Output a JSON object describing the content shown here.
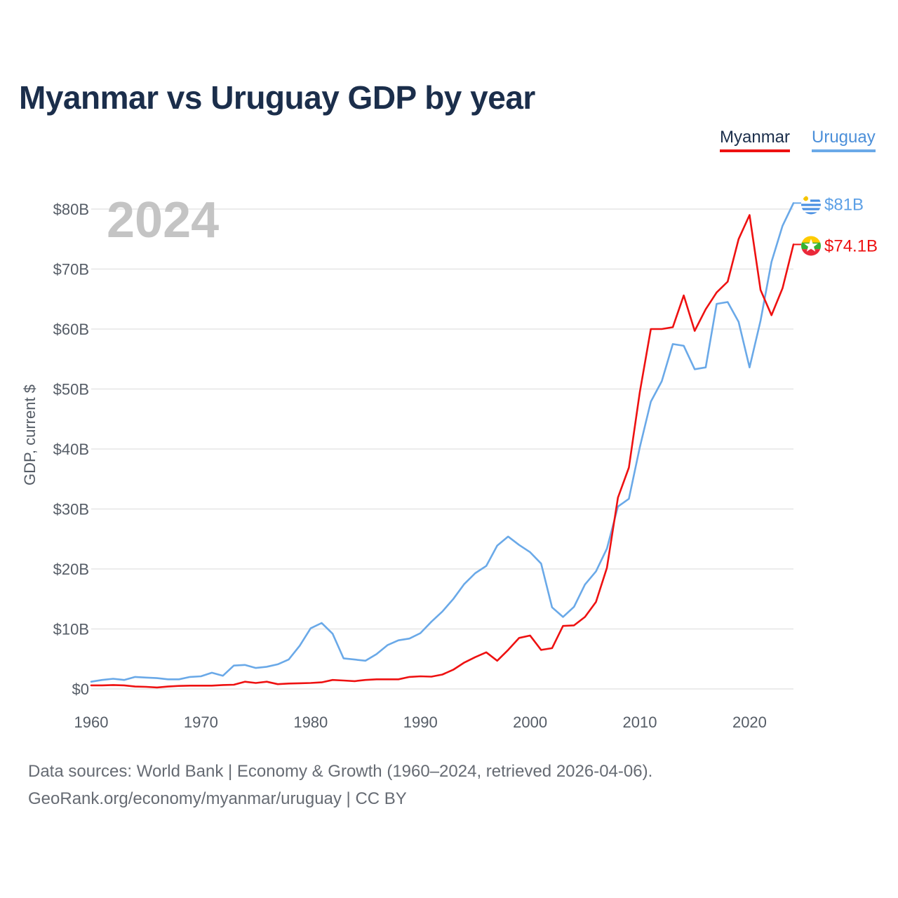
{
  "title": "Myanmar vs Uruguay GDP by year",
  "year_label": "2024",
  "legend": {
    "myanmar": "Myanmar",
    "uruguay": "Uruguay"
  },
  "end_labels": {
    "myanmar": "$74.1B",
    "uruguay": "$81B"
  },
  "footer": {
    "line1": "Data sources: World Bank | Economy & Growth (1960–2024, retrieved 2026-04-06).",
    "line2": "GeoRank.org/economy/myanmar/uruguay | CC BY"
  },
  "colors": {
    "myanmar": "#ee1111",
    "uruguay": "#6aa9e8",
    "title": "#1b2e4b",
    "grid": "#e6e6e6"
  },
  "chart_data": {
    "type": "line",
    "title": "Myanmar vs Uruguay GDP by year",
    "xlabel": "",
    "ylabel": "GDP, current $",
    "xlim": [
      1960,
      2024
    ],
    "ylim": [
      0,
      80
    ],
    "x_ticks": [
      1960,
      1970,
      1980,
      1990,
      2000,
      2010,
      2020
    ],
    "y_ticks": [
      0,
      10,
      20,
      30,
      40,
      50,
      60,
      70,
      80
    ],
    "y_tick_labels": [
      "$0",
      "$10B",
      "$20B",
      "$30B",
      "$40B",
      "$50B",
      "$60B",
      "$70B",
      "$80B"
    ],
    "x_tick_labels": [
      "1960",
      "1970",
      "1980",
      "1990",
      "2000",
      "2010",
      "2020"
    ],
    "x": [
      1960,
      1961,
      1962,
      1963,
      1964,
      1965,
      1966,
      1967,
      1968,
      1969,
      1970,
      1971,
      1972,
      1973,
      1974,
      1975,
      1976,
      1977,
      1978,
      1979,
      1980,
      1981,
      1982,
      1983,
      1984,
      1985,
      1986,
      1987,
      1988,
      1989,
      1990,
      1991,
      1992,
      1993,
      1994,
      1995,
      1996,
      1997,
      1998,
      1999,
      2000,
      2001,
      2002,
      2003,
      2004,
      2005,
      2006,
      2007,
      2008,
      2009,
      2010,
      2011,
      2012,
      2013,
      2014,
      2015,
      2016,
      2017,
      2018,
      2019,
      2020,
      2021,
      2022,
      2023,
      2024
    ],
    "series": [
      {
        "name": "Myanmar",
        "color": "#ee1111",
        "values": [
          0.6,
          0.6,
          0.65,
          0.6,
          0.4,
          0.35,
          0.25,
          0.4,
          0.5,
          0.55,
          0.55,
          0.55,
          0.65,
          0.7,
          1.2,
          1.0,
          1.2,
          0.8,
          0.9,
          0.95,
          1.0,
          1.1,
          1.5,
          1.4,
          1.3,
          1.5,
          1.6,
          1.6,
          1.6,
          2.0,
          2.1,
          2.05,
          2.4,
          3.2,
          4.4,
          5.3,
          6.1,
          4.7,
          6.5,
          8.5,
          8.9,
          6.5,
          6.8,
          10.5,
          10.6,
          12.0,
          14.5,
          20.2,
          31.9,
          36.9,
          49.5,
          60.0,
          60.0,
          60.3,
          65.6,
          59.7,
          63.3,
          66.1,
          67.9,
          75.0,
          79.0,
          66.5,
          62.3,
          66.8,
          74.1
        ]
      },
      {
        "name": "Uruguay",
        "color": "#6aa9e8",
        "values": [
          1.2,
          1.5,
          1.7,
          1.5,
          2.0,
          1.9,
          1.8,
          1.6,
          1.6,
          2.0,
          2.1,
          2.7,
          2.2,
          3.9,
          4.0,
          3.5,
          3.7,
          4.1,
          4.9,
          7.2,
          10.1,
          11.0,
          9.2,
          5.1,
          4.9,
          4.7,
          5.8,
          7.3,
          8.1,
          8.4,
          9.3,
          11.2,
          12.9,
          15.0,
          17.5,
          19.3,
          20.5,
          23.9,
          25.4,
          24.0,
          22.8,
          20.9,
          13.6,
          12.0,
          13.7,
          17.4,
          19.6,
          23.4,
          30.4,
          31.7,
          40.3,
          47.9,
          51.3,
          57.5,
          57.2,
          53.3,
          53.6,
          64.2,
          64.5,
          61.2,
          53.6,
          61.4,
          71.2,
          77.2,
          81.0
        ]
      }
    ]
  }
}
